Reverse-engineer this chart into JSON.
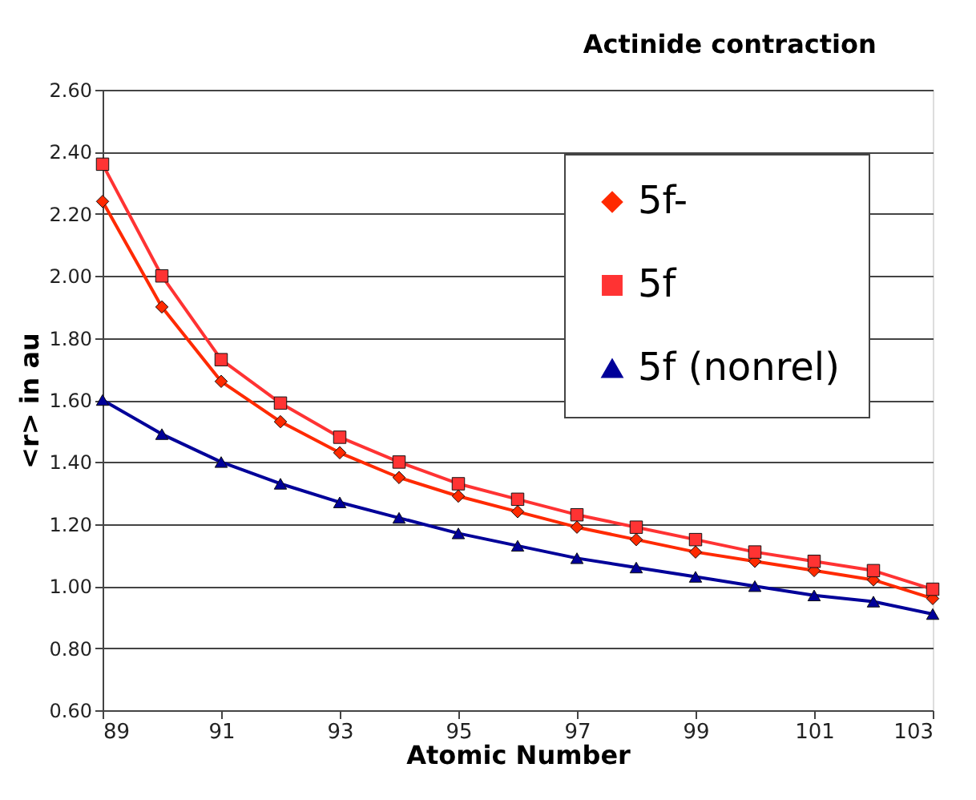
{
  "chart_data": {
    "type": "line",
    "title": "Actinide contraction",
    "xlabel": "Atomic Number",
    "ylabel": "<r> in au",
    "x": [
      89,
      90,
      91,
      92,
      93,
      94,
      95,
      96,
      97,
      98,
      99,
      100,
      101,
      102,
      103
    ],
    "series": [
      {
        "name": "5f-",
        "color": "#ff2a00",
        "marker": "diamond",
        "values": [
          2.24,
          1.9,
          1.66,
          1.53,
          1.43,
          1.35,
          1.29,
          1.24,
          1.19,
          1.15,
          1.11,
          1.08,
          1.05,
          1.02,
          0.96
        ]
      },
      {
        "name": "5f",
        "color": "#ff3333",
        "marker": "square",
        "values": [
          2.36,
          2.0,
          1.73,
          1.59,
          1.48,
          1.4,
          1.33,
          1.28,
          1.23,
          1.19,
          1.15,
          1.11,
          1.08,
          1.05,
          0.99
        ]
      },
      {
        "name": "5f (nonrel)",
        "color": "#000099",
        "marker": "triangle",
        "values": [
          1.6,
          1.49,
          1.4,
          1.33,
          1.27,
          1.22,
          1.17,
          1.13,
          1.09,
          1.06,
          1.03,
          1.0,
          0.97,
          0.95,
          0.91
        ]
      }
    ],
    "xlim": [
      89,
      103
    ],
    "xticks": [
      89,
      91,
      93,
      95,
      97,
      99,
      101,
      103
    ],
    "ylim": [
      0.6,
      2.6
    ],
    "yticks": [
      {
        "value": 0.6,
        "label": "0.60"
      },
      {
        "value": 0.8,
        "label": "0.80"
      },
      {
        "value": 1.0,
        "label": "1.00"
      },
      {
        "value": 1.2,
        "label": "1.20"
      },
      {
        "value": 1.4,
        "label": "1.40"
      },
      {
        "value": 1.6,
        "label": "1.60"
      },
      {
        "value": 1.8,
        "label": "1.80"
      },
      {
        "value": 2.0,
        "label": "2.00"
      },
      {
        "value": 2.2,
        "label": "2.20"
      },
      {
        "value": 2.4,
        "label": "2.40"
      },
      {
        "value": 2.6,
        "label": "2.60"
      }
    ],
    "grid": "y",
    "legend": "top right",
    "line_style": "solid"
  }
}
